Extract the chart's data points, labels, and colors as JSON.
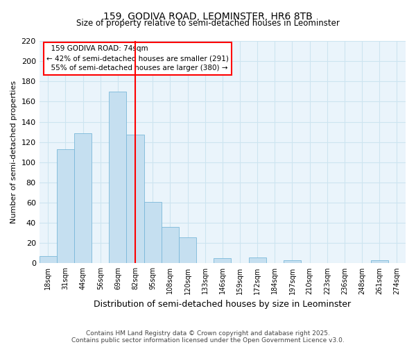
{
  "title": "159, GODIVA ROAD, LEOMINSTER, HR6 8TB",
  "subtitle": "Size of property relative to semi-detached houses in Leominster",
  "xlabel": "Distribution of semi-detached houses by size in Leominster",
  "ylabel": "Number of semi-detached properties",
  "bar_labels": [
    "18sqm",
    "31sqm",
    "44sqm",
    "56sqm",
    "69sqm",
    "82sqm",
    "95sqm",
    "108sqm",
    "120sqm",
    "133sqm",
    "146sqm",
    "159sqm",
    "172sqm",
    "184sqm",
    "197sqm",
    "210sqm",
    "223sqm",
    "236sqm",
    "248sqm",
    "261sqm",
    "274sqm"
  ],
  "bar_values": [
    7,
    113,
    129,
    0,
    170,
    127,
    61,
    36,
    26,
    0,
    5,
    0,
    6,
    0,
    3,
    0,
    0,
    0,
    0,
    3,
    0
  ],
  "bar_color": "#c5dff0",
  "bar_edge_color": "#7ab8d9",
  "grid_color": "#cde4f0",
  "background_color": "#eaf4fb",
  "marker_label": "159 GODIVA ROAD: 74sqm",
  "pct_smaller": 42,
  "pct_smaller_count": 291,
  "pct_larger": 55,
  "pct_larger_count": 380,
  "ylim": [
    0,
    220
  ],
  "yticks": [
    0,
    20,
    40,
    60,
    80,
    100,
    120,
    140,
    160,
    180,
    200,
    220
  ],
  "footnote1": "Contains HM Land Registry data © Crown copyright and database right 2025.",
  "footnote2": "Contains public sector information licensed under the Open Government Licence v3.0.",
  "red_line_bin": 5,
  "title_fontsize": 10,
  "subtitle_fontsize": 9
}
